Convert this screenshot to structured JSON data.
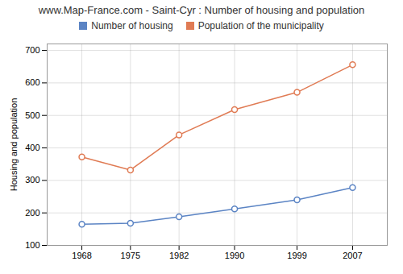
{
  "chart_data": {
    "type": "line",
    "title": "www.Map-France.com - Saint-Cyr : Number of housing and population",
    "x": [
      1968,
      1975,
      1982,
      1990,
      1999,
      2007
    ],
    "series": [
      {
        "name": "Number of housing",
        "color": "#5b84c4",
        "values": [
          165,
          168,
          188,
          212,
          240,
          278
        ]
      },
      {
        "name": "Population of the municipality",
        "color": "#e07b54",
        "values": [
          372,
          332,
          440,
          518,
          571,
          656
        ]
      }
    ],
    "ylabel": "Housing and population",
    "xlim": [
      1963,
      2012
    ],
    "xticks": [
      1968,
      1975,
      1982,
      1990,
      1999,
      2007
    ],
    "ylim": [
      100,
      720
    ],
    "yticks": [
      100,
      200,
      300,
      400,
      500,
      600,
      700
    ],
    "grid": true,
    "legend": "top",
    "marker": "circle"
  }
}
